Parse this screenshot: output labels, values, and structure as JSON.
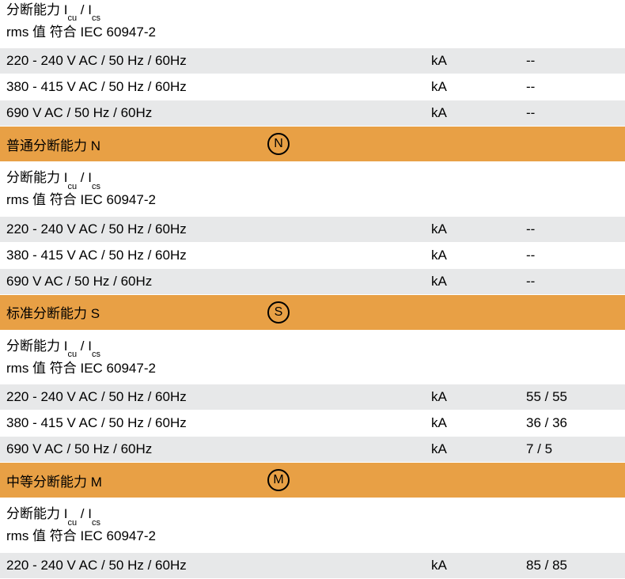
{
  "header_top_partial": "分断能力 Icu / Ics",
  "header_line2": "rms 值 符合 IEC 60947-2",
  "sections": [
    {
      "rows": [
        {
          "label": "220 - 240 V AC / 50 Hz / 60Hz",
          "unit": "kA",
          "value": "--",
          "style": "gray"
        },
        {
          "label": "380 - 415 V AC / 50 Hz / 60Hz",
          "unit": "kA",
          "value": "--",
          "style": "white"
        },
        {
          "label": "690 V AC / 50 Hz / 60Hz",
          "unit": "kA",
          "value": "--",
          "style": "gray"
        }
      ]
    }
  ],
  "section_n": {
    "title": "普通分断能力 N",
    "letter": "N",
    "rows": [
      {
        "label": "220 - 240 V AC / 50 Hz / 60Hz",
        "unit": "kA",
        "value": "--",
        "style": "gray"
      },
      {
        "label": "380 - 415 V AC / 50 Hz / 60Hz",
        "unit": "kA",
        "value": "--",
        "style": "white"
      },
      {
        "label": "690 V AC / 50 Hz / 60Hz",
        "unit": "kA",
        "value": "--",
        "style": "gray"
      }
    ]
  },
  "section_s": {
    "title": "标准分断能力 S",
    "letter": "S",
    "rows": [
      {
        "label": "220 - 240 V AC / 50 Hz / 60Hz",
        "unit": "kA",
        "value": "55 / 55",
        "style": "gray"
      },
      {
        "label": "380 - 415 V AC / 50 Hz / 60Hz",
        "unit": "kA",
        "value": "36 / 36",
        "style": "white"
      },
      {
        "label": "690 V AC / 50 Hz / 60Hz",
        "unit": "kA",
        "value": "7 / 5",
        "style": "gray"
      }
    ]
  },
  "section_m": {
    "title": "中等分断能力 M",
    "letter": "M",
    "rows": [
      {
        "label": "220 - 240 V AC / 50 Hz / 60Hz",
        "unit": "kA",
        "value": "85 / 85",
        "style": "gray"
      }
    ]
  },
  "subheader_line1_prefix": "分断能力 I",
  "subheader_line1_sub1": "cu",
  "subheader_line1_mid": " / I",
  "subheader_line1_sub2": "cs",
  "subheader_line2": "rms 值 符合 IEC 60947-2",
  "colors": {
    "orange": "#e8a045",
    "gray": "#e7e8e9",
    "white": "#ffffff"
  }
}
